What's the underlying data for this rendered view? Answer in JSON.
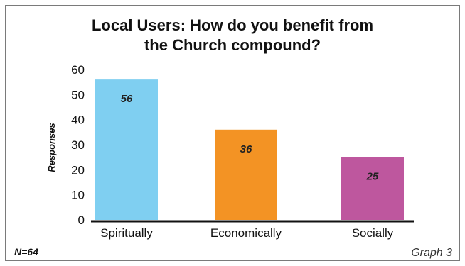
{
  "chart_data": {
    "type": "bar",
    "title_lines": [
      "Local Users: How do you benefit from",
      "the Church compound?"
    ],
    "ylabel": "Responses",
    "xlabel": "",
    "categories": [
      "Spiritually",
      "Economically",
      "Socially"
    ],
    "values": [
      56,
      36,
      25
    ],
    "data_labels": [
      "56",
      "36",
      "25"
    ],
    "colors": [
      "#7fcff1",
      "#f39324",
      "#be579e"
    ],
    "ylim": [
      0,
      60
    ],
    "yticks": [
      0,
      10,
      20,
      30,
      40,
      50,
      60
    ],
    "grid": false,
    "legend": "none"
  },
  "footer": {
    "sample_size": "N=64",
    "graph_label": "Graph 3"
  }
}
